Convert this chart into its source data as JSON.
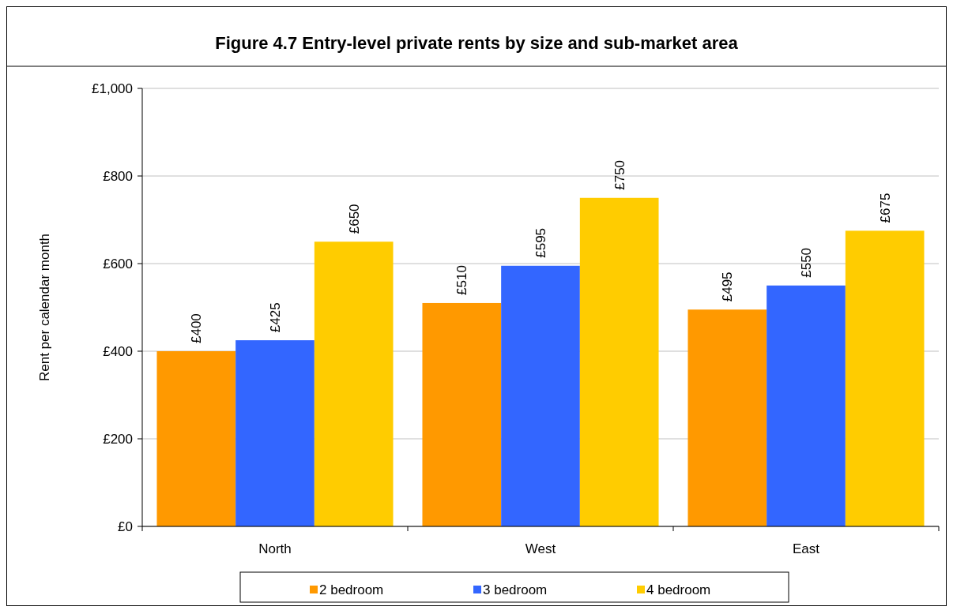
{
  "chart_data": {
    "type": "bar",
    "title": "Figure 4.7 Entry-level private rents by size and sub-market area",
    "ylabel": "Rent per calendar month",
    "categories": [
      "North",
      "West",
      "East"
    ],
    "series": [
      {
        "name": "2 bedroom",
        "color": "#ff9900",
        "values": [
          400,
          510,
          495
        ],
        "value_labels": [
          "£400",
          "£510",
          "£495"
        ]
      },
      {
        "name": "3 bedroom",
        "color": "#3366ff",
        "values": [
          425,
          595,
          550
        ],
        "value_labels": [
          "£425",
          "£595",
          "£550"
        ]
      },
      {
        "name": "4 bedroom",
        "color": "#ffcc00",
        "values": [
          650,
          750,
          675
        ],
        "value_labels": [
          "£650",
          "£750",
          "£675"
        ]
      }
    ],
    "ylim": [
      0,
      1000
    ],
    "yticks": [
      {
        "value": 0,
        "label": "£0"
      },
      {
        "value": 200,
        "label": "£200"
      },
      {
        "value": 400,
        "label": "£400"
      },
      {
        "value": 600,
        "label": "£600"
      },
      {
        "value": 800,
        "label": "£800"
      },
      {
        "value": 1000,
        "label": "£1,000"
      }
    ],
    "grid": "y",
    "legend": "bottom"
  }
}
